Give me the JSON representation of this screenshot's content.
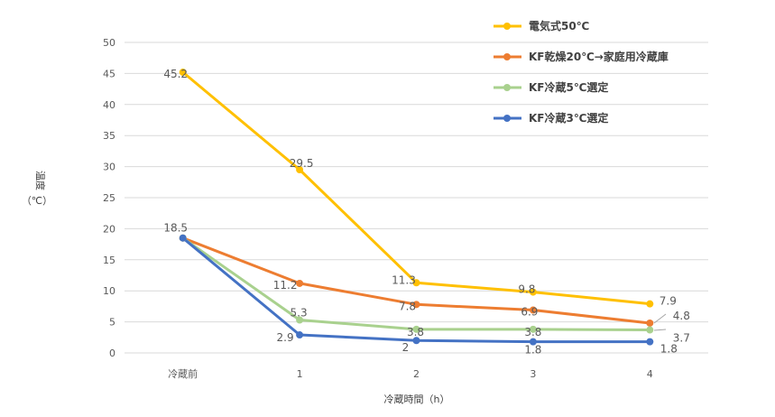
{
  "chart_data": {
    "type": "line",
    "categories": [
      "冷蔵前",
      "1",
      "2",
      "3",
      "4"
    ],
    "xlabel": "冷蔵時間（h）",
    "ylabel": "温度",
    "ylabel_unit": "（℃）",
    "ylim": [
      0,
      50
    ],
    "yticks": [
      0,
      5,
      10,
      15,
      20,
      25,
      30,
      35,
      40,
      45,
      50
    ],
    "grid": true,
    "legend_position": "top-right",
    "series": [
      {
        "name": "電気式50℃",
        "color": "#FFC000",
        "values": [
          45.2,
          29.5,
          11.3,
          9.8,
          7.9
        ],
        "labels": [
          "45.2",
          "29.5",
          "11.3",
          "9.8",
          "7.9"
        ]
      },
      {
        "name": "KF乾燥20℃→家庭用冷蔵庫",
        "color": "#ED7D31",
        "values": [
          18.5,
          11.2,
          7.8,
          6.9,
          4.8
        ],
        "labels": [
          "",
          "11.2",
          "7.8",
          "6.9",
          "4.8"
        ]
      },
      {
        "name": "KF冷蔵5℃選定",
        "color": "#A9D18E",
        "values": [
          18.5,
          5.3,
          3.8,
          3.8,
          3.7
        ],
        "labels": [
          "",
          "5.3",
          "3.8",
          "3.8",
          "3.7"
        ]
      },
      {
        "name": "KF冷蔵3℃選定",
        "color": "#4472C4",
        "values": [
          18.5,
          2.9,
          2.0,
          1.8,
          1.8
        ],
        "labels": [
          "18.5",
          "2.9",
          "2",
          "1.8",
          "1.8"
        ]
      }
    ]
  }
}
